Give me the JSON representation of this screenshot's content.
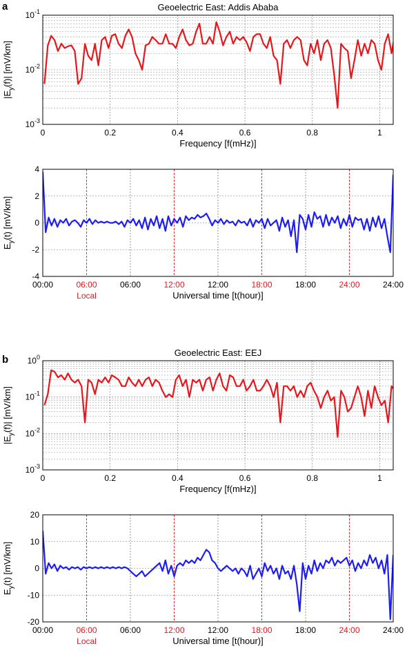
{
  "colors": {
    "spectrum": "#e8161b",
    "timeseries": "#1d1df0",
    "local_marker": "#e8161b",
    "axes": "#000000"
  },
  "panel_labels": [
    "a",
    "b"
  ],
  "chart_data": [
    {
      "type": "line",
      "title": "Geoelectric East: Addis Ababa",
      "xlabel": "Frequency [f(mHz)]",
      "ylabel": "|E_y(f)| [mV/km]",
      "yscale": "log",
      "ylim": [
        0.001,
        0.1
      ],
      "xlim": [
        0,
        1.04
      ],
      "xticks": [
        "0",
        "0.2",
        "0.4",
        "0.6",
        "0.8",
        "1"
      ],
      "yticks": [
        "10^-3",
        "10^-2",
        "10^-1"
      ],
      "grid": true,
      "series": [
        {
          "color": "#e8161b",
          "x": [
            0.005,
            0.015,
            0.025,
            0.035,
            0.045,
            0.055,
            0.065,
            0.075,
            0.085,
            0.095,
            0.105,
            0.115,
            0.125,
            0.135,
            0.145,
            0.155,
            0.165,
            0.175,
            0.185,
            0.195,
            0.205,
            0.215,
            0.225,
            0.235,
            0.245,
            0.255,
            0.265,
            0.275,
            0.285,
            0.295,
            0.305,
            0.315,
            0.325,
            0.335,
            0.345,
            0.355,
            0.365,
            0.375,
            0.385,
            0.395,
            0.405,
            0.415,
            0.425,
            0.435,
            0.445,
            0.455,
            0.465,
            0.475,
            0.485,
            0.495,
            0.505,
            0.515,
            0.525,
            0.535,
            0.545,
            0.555,
            0.565,
            0.575,
            0.585,
            0.595,
            0.605,
            0.615,
            0.625,
            0.635,
            0.645,
            0.655,
            0.665,
            0.675,
            0.685,
            0.695,
            0.705,
            0.715,
            0.725,
            0.735,
            0.745,
            0.755,
            0.765,
            0.775,
            0.785,
            0.795,
            0.805,
            0.815,
            0.825,
            0.835,
            0.845,
            0.855,
            0.865,
            0.875,
            0.885,
            0.895,
            0.905,
            0.915,
            0.925,
            0.935,
            0.945,
            0.955,
            0.965,
            0.975,
            0.985,
            0.995,
            1.005,
            1.015,
            1.025,
            1.035,
            1.045
          ],
          "y": [
            0.0055,
            0.028,
            0.042,
            0.035,
            0.022,
            0.03,
            0.025,
            0.027,
            0.028,
            0.022,
            0.0055,
            0.007,
            0.03,
            0.018,
            0.015,
            0.03,
            0.012,
            0.035,
            0.04,
            0.025,
            0.042,
            0.045,
            0.03,
            0.025,
            0.042,
            0.055,
            0.04,
            0.02,
            0.015,
            0.01,
            0.028,
            0.03,
            0.04,
            0.035,
            0.03,
            0.03,
            0.045,
            0.03,
            0.03,
            0.025,
            0.04,
            0.055,
            0.035,
            0.028,
            0.03,
            0.05,
            0.07,
            0.03,
            0.03,
            0.04,
            0.03,
            0.075,
            0.05,
            0.028,
            0.04,
            0.05,
            0.03,
            0.04,
            0.035,
            0.04,
            0.032,
            0.022,
            0.04,
            0.045,
            0.045,
            0.03,
            0.025,
            0.04,
            0.018,
            0.015,
            0.0055,
            0.03,
            0.035,
            0.025,
            0.035,
            0.04,
            0.035,
            0.015,
            0.012,
            0.03,
            0.02,
            0.035,
            0.015,
            0.03,
            0.035,
            0.025,
            0.008,
            0.002,
            0.03,
            0.025,
            0.022,
            0.007,
            0.015,
            0.035,
            0.018,
            0.03,
            0.02,
            0.035,
            0.03,
            0.015,
            0.01,
            0.03,
            0.045,
            0.02,
            0.045
          ]
        }
      ]
    },
    {
      "type": "line",
      "xlabel": "Universal time [t(hour)]",
      "ylabel": "E_y(t) [mV/km]",
      "ylim": [
        -4,
        4
      ],
      "xlim": [
        0,
        24
      ],
      "yticks": [
        "-4",
        "-2",
        "0",
        "2",
        "4"
      ],
      "xticks": [
        "00:00",
        "06:00",
        "12:00",
        "18:00",
        "24:00"
      ],
      "local_time_labels": [
        "06:00",
        "12:00",
        "18:00",
        "24:00"
      ],
      "local_note": "Local",
      "grid": true,
      "series": [
        {
          "color": "#1d1df0",
          "x": [
            0,
            0.2,
            0.4,
            0.6,
            0.8,
            1,
            1.2,
            1.4,
            1.6,
            1.8,
            2,
            2.2,
            2.4,
            2.6,
            2.8,
            3,
            3.2,
            3.4,
            3.6,
            3.8,
            4,
            4.2,
            4.4,
            4.6,
            4.8,
            5,
            5.2,
            5.4,
            5.6,
            5.8,
            6,
            6.2,
            6.4,
            6.6,
            6.8,
            7,
            7.2,
            7.4,
            7.6,
            7.8,
            8,
            8.2,
            8.4,
            8.6,
            8.8,
            9,
            9.2,
            9.4,
            9.6,
            9.8,
            10,
            10.2,
            10.4,
            10.6,
            10.8,
            11,
            11.2,
            11.4,
            11.6,
            11.8,
            12,
            12.2,
            12.4,
            12.6,
            12.8,
            13,
            13.2,
            13.4,
            13.6,
            13.8,
            14,
            14.2,
            14.4,
            14.6,
            14.8,
            15,
            15.2,
            15.4,
            15.6,
            15.8,
            16,
            16.2,
            16.4,
            16.6,
            16.8,
            17,
            17.2,
            17.4,
            17.6,
            17.8,
            18,
            18.2,
            18.4,
            18.6,
            18.8,
            19,
            19.2,
            19.4,
            19.6,
            19.8,
            20,
            20.2,
            20.4,
            20.6,
            20.8,
            21,
            21.2,
            21.4,
            21.6,
            21.8,
            22,
            22.2,
            22.4,
            22.6,
            22.8,
            23,
            23.2,
            23.4,
            23.6,
            23.8,
            24
          ],
          "y": [
            3.8,
            -0.7,
            0.4,
            -0.2,
            0.3,
            -0.3,
            0.2,
            0.0,
            0.3,
            -0.2,
            0.1,
            0.2,
            0.0,
            -0.3,
            0.2,
            0.0,
            0.3,
            -0.1,
            0.2,
            0.0,
            0.1,
            0.0,
            0.1,
            0.0,
            0.0,
            0.1,
            -0.1,
            0.1,
            -0.3,
            0.2,
            0.0,
            0.3,
            -0.2,
            0.2,
            -0.4,
            0.4,
            -0.5,
            0.3,
            -0.2,
            0.5,
            -0.4,
            0.3,
            -0.6,
            0.5,
            -0.2,
            0.3,
            0.0,
            0.4,
            -0.3,
            0.5,
            0.2,
            0.4,
            0.3,
            0.6,
            0.4,
            0.5,
            0.7,
            0.3,
            -0.2,
            0.2,
            0.0,
            0.3,
            -0.1,
            0.2,
            0.0,
            0.1,
            -0.2,
            0.2,
            0.0,
            0.1,
            -0.2,
            0.3,
            -0.3,
            0.2,
            0.0,
            0.3,
            -0.4,
            0.3,
            -0.2,
            0.0,
            0.2,
            -0.6,
            0.4,
            -0.3,
            0.2,
            -1.0,
            0.2,
            -2.2,
            0.6,
            0.3,
            -0.5,
            0.6,
            -0.3,
            0.8,
            0.3,
            0.5,
            -0.3,
            0.6,
            -0.2,
            0.4,
            0.0,
            0.5,
            -0.4,
            0.3,
            -0.2,
            0.6,
            -0.3,
            0.4,
            0.2,
            0.3,
            -0.5,
            0.3,
            -0.6,
            0.4,
            -0.3,
            0.5,
            -0.4,
            0.3,
            -1.0,
            -2.2,
            3.6
          ]
        }
      ]
    },
    {
      "type": "line",
      "title": "Geoelectric East: EEJ",
      "xlabel": "Frequency [f(mHz)]",
      "ylabel": "|E_y(f)| [mV/km]",
      "yscale": "log",
      "ylim": [
        0.001,
        1
      ],
      "xlim": [
        0,
        1.04
      ],
      "xticks": [
        "0",
        "0.2",
        "0.4",
        "0.6",
        "0.8",
        "1"
      ],
      "yticks": [
        "10^-3",
        "10^-2",
        "10^-1",
        "10^0"
      ],
      "grid": true,
      "series": [
        {
          "color": "#e8161b",
          "x": [
            0.005,
            0.015,
            0.025,
            0.035,
            0.045,
            0.055,
            0.065,
            0.075,
            0.085,
            0.095,
            0.105,
            0.115,
            0.125,
            0.135,
            0.145,
            0.155,
            0.165,
            0.175,
            0.185,
            0.195,
            0.205,
            0.215,
            0.225,
            0.235,
            0.245,
            0.255,
            0.265,
            0.275,
            0.285,
            0.295,
            0.305,
            0.315,
            0.325,
            0.335,
            0.345,
            0.355,
            0.365,
            0.375,
            0.385,
            0.395,
            0.405,
            0.415,
            0.425,
            0.435,
            0.445,
            0.455,
            0.465,
            0.475,
            0.485,
            0.495,
            0.505,
            0.515,
            0.525,
            0.535,
            0.545,
            0.555,
            0.565,
            0.575,
            0.585,
            0.595,
            0.605,
            0.615,
            0.625,
            0.635,
            0.645,
            0.655,
            0.665,
            0.675,
            0.685,
            0.695,
            0.705,
            0.715,
            0.725,
            0.735,
            0.745,
            0.755,
            0.765,
            0.775,
            0.785,
            0.795,
            0.805,
            0.815,
            0.825,
            0.835,
            0.845,
            0.855,
            0.865,
            0.875,
            0.885,
            0.895,
            0.905,
            0.915,
            0.925,
            0.935,
            0.945,
            0.955,
            0.965,
            0.975,
            0.985,
            0.995,
            1.005,
            1.015,
            1.025,
            1.035,
            1.045
          ],
          "y": [
            0.06,
            0.12,
            0.55,
            0.5,
            0.35,
            0.4,
            0.3,
            0.45,
            0.3,
            0.25,
            0.3,
            0.2,
            0.02,
            0.3,
            0.25,
            0.12,
            0.3,
            0.25,
            0.35,
            0.25,
            0.4,
            0.35,
            0.3,
            0.2,
            0.2,
            0.35,
            0.25,
            0.2,
            0.3,
            0.2,
            0.3,
            0.35,
            0.2,
            0.3,
            0.25,
            0.15,
            0.1,
            0.12,
            0.1,
            0.3,
            0.4,
            0.2,
            0.3,
            0.1,
            0.3,
            0.25,
            0.3,
            0.15,
            0.3,
            0.35,
            0.15,
            0.3,
            0.45,
            0.2,
            0.15,
            0.4,
            0.35,
            0.2,
            0.2,
            0.3,
            0.15,
            0.2,
            0.3,
            0.15,
            0.15,
            0.2,
            0.3,
            0.2,
            0.1,
            0.25,
            0.02,
            0.2,
            0.2,
            0.15,
            0.2,
            0.1,
            0.15,
            0.1,
            0.2,
            0.25,
            0.15,
            0.1,
            0.05,
            0.1,
            0.15,
            0.08,
            0.1,
            0.008,
            0.15,
            0.1,
            0.04,
            0.05,
            0.1,
            0.2,
            0.1,
            0.03,
            0.15,
            0.05,
            0.2,
            0.1,
            0.06,
            0.08,
            0.02,
            0.2,
            0.15
          ]
        }
      ]
    },
    {
      "type": "line",
      "xlabel": "Universal time [t(hour)]",
      "ylabel": "E_y(t) [mV/km]",
      "ylim": [
        -20,
        20
      ],
      "xlim": [
        0,
        24
      ],
      "yticks": [
        "-20",
        "-10",
        "0",
        "10",
        "20"
      ],
      "xticks": [
        "00:00",
        "06:00",
        "12:00",
        "18:00",
        "24:00"
      ],
      "local_time_labels": [
        "06:00",
        "12:00",
        "18:00",
        "24:00"
      ],
      "local_note": "Local",
      "grid": true,
      "series": [
        {
          "color": "#1d1df0",
          "x": [
            0,
            0.2,
            0.4,
            0.6,
            0.8,
            1,
            1.2,
            1.4,
            1.6,
            1.8,
            2,
            2.2,
            2.4,
            2.6,
            2.8,
            3,
            3.2,
            3.4,
            3.6,
            3.8,
            4,
            4.2,
            4.4,
            4.6,
            4.8,
            5,
            5.2,
            5.4,
            5.6,
            5.8,
            6,
            6.2,
            6.4,
            6.6,
            6.8,
            7,
            7.2,
            7.4,
            7.6,
            7.8,
            8,
            8.2,
            8.4,
            8.6,
            8.8,
            9,
            9.2,
            9.4,
            9.6,
            9.8,
            10,
            10.2,
            10.4,
            10.6,
            10.8,
            11,
            11.2,
            11.4,
            11.6,
            11.8,
            12,
            12.2,
            12.4,
            12.6,
            12.8,
            13,
            13.2,
            13.4,
            13.6,
            13.8,
            14,
            14.2,
            14.4,
            14.6,
            14.8,
            15,
            15.2,
            15.4,
            15.6,
            15.8,
            16,
            16.2,
            16.4,
            16.6,
            16.8,
            17,
            17.2,
            17.4,
            17.6,
            17.8,
            18,
            18.2,
            18.4,
            18.6,
            18.8,
            19,
            19.2,
            19.4,
            19.6,
            19.8,
            20,
            20.2,
            20.4,
            20.6,
            20.8,
            21,
            21.2,
            21.4,
            21.6,
            21.8,
            22,
            22.2,
            22.4,
            22.6,
            22.8,
            23,
            23.2,
            23.4,
            23.6,
            23.8,
            24
          ],
          "y": [
            14,
            -2,
            2,
            0,
            1.5,
            -1,
            1,
            0,
            0.5,
            -0.5,
            0.5,
            0,
            0.5,
            -0.5,
            0.5,
            0,
            0.5,
            0,
            0.5,
            0,
            0.5,
            0,
            0.5,
            0,
            0.5,
            0,
            0.5,
            0,
            0.5,
            0,
            -1,
            -2,
            -3,
            -2,
            -1,
            -3,
            -2,
            -1,
            0,
            1,
            2,
            -1,
            3,
            -2,
            1,
            -3,
            1,
            2,
            1,
            3,
            2,
            3,
            2,
            4,
            3,
            5,
            7,
            6,
            3,
            2,
            0,
            -1,
            0,
            1,
            0,
            -1,
            0,
            -2,
            0,
            -1,
            -3,
            1,
            -4,
            -2,
            0,
            -3,
            2,
            -1,
            1,
            -2,
            0,
            -4,
            1,
            -2,
            -1,
            -4,
            1,
            -6,
            -16,
            2,
            -4,
            1,
            -2,
            3,
            -1,
            2,
            0,
            3,
            2,
            4,
            1,
            3,
            2,
            3,
            4,
            1,
            3,
            -1,
            2,
            0,
            3,
            1,
            5,
            2,
            4,
            0,
            3,
            -2,
            5,
            -19,
            5
          ]
        }
      ]
    }
  ]
}
